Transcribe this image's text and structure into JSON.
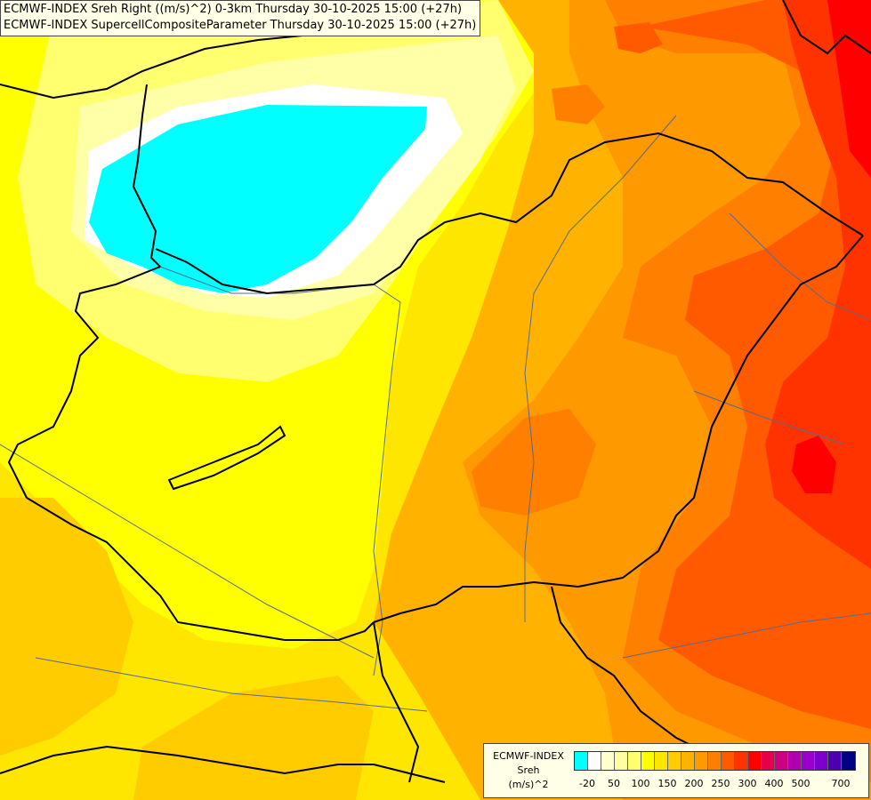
{
  "titles": {
    "line1": "ECMWF-INDEX Sreh Right ((m/s)^2) 0-3km Thursday 30-10-2025 15:00 (+27h)",
    "line2": "ECMWF-INDEX SupercellCompositeParameter Thursday 30-10-2025 15:00 (+27h)"
  },
  "legend": {
    "line1": "ECMWF-INDEX",
    "line2": "Sreh",
    "line3": "(m/s)^2",
    "colors": [
      "#00ffff",
      "#ffffff",
      "#ffffd0",
      "#ffffa0",
      "#ffff70",
      "#ffff00",
      "#ffe600",
      "#ffcc00",
      "#ffb200",
      "#ff9900",
      "#ff7f00",
      "#ff5a00",
      "#ff3300",
      "#ff0000",
      "#e6004c",
      "#cc0080",
      "#b000b0",
      "#9900cc",
      "#7a00cc",
      "#4c00b0",
      "#000080"
    ],
    "tick_labels": [
      "-20",
      "50",
      "100",
      "150",
      "200",
      "250",
      "300",
      "400",
      "500",
      "700"
    ]
  },
  "map_colors": {
    "cyan": "#00ffff",
    "white": "#ffffff",
    "pale": "#ffffa8",
    "light_yellow": "#ffff70",
    "yellow": "#ffff00",
    "gold": "#ffe600",
    "amber": "#ffcc00",
    "orange_light": "#ffb200",
    "orange": "#ff9900",
    "orange_dark": "#ff7f00",
    "red_orange": "#ff5a00",
    "red": "#ff3300",
    "deep_red": "#ff0000",
    "border": "#000000",
    "river": "#5a6a8a"
  }
}
